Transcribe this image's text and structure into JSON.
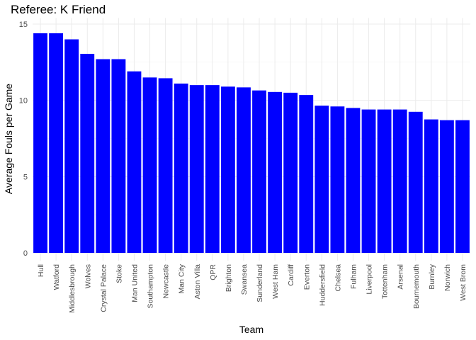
{
  "chart_data": {
    "type": "bar",
    "title": "Referee: K Friend",
    "xlabel": "Team",
    "ylabel": "Average Fouls per Game",
    "ylim": [
      0,
      15.4
    ],
    "yticks": [
      0,
      5,
      10,
      15
    ],
    "grid": true,
    "bar_color": "#0000ff",
    "categories": [
      "Hull",
      "Watford",
      "Middlesbrough",
      "Wolves",
      "Crystal Palace",
      "Stoke",
      "Man United",
      "Southampton",
      "Newcastle",
      "Man City",
      "Aston Villa",
      "QPR",
      "Brighton",
      "Swansea",
      "Sunderland",
      "West Ham",
      "Cardiff",
      "Everton",
      "Huddersfield",
      "Chelsea",
      "Fulham",
      "Liverpool",
      "Tottenham",
      "Arsenal",
      "Bournemouth",
      "Burnley",
      "Norwich",
      "West Brom"
    ],
    "values": [
      14.4,
      14.4,
      14.0,
      13.05,
      12.7,
      12.7,
      11.9,
      11.5,
      11.45,
      11.1,
      11.0,
      11.0,
      10.9,
      10.85,
      10.65,
      10.55,
      10.5,
      10.35,
      9.65,
      9.6,
      9.5,
      9.4,
      9.4,
      9.4,
      9.25,
      8.75,
      8.7,
      8.7
    ]
  }
}
